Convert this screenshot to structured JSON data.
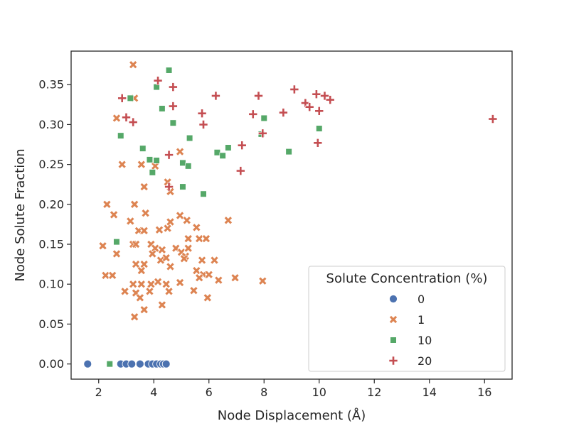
{
  "chart_data": {
    "type": "scatter",
    "xlabel": "Node Displacement (Å)",
    "ylabel": "Node Solute Fraction",
    "xlim": [
      1.0,
      17.0
    ],
    "ylim": [
      -0.019,
      0.392
    ],
    "xticks": [
      "2",
      "4",
      "6",
      "8",
      "10",
      "12",
      "14",
      "16"
    ],
    "yticks": [
      "0.00",
      "0.05",
      "0.10",
      "0.15",
      "0.20",
      "0.25",
      "0.30",
      "0.35"
    ],
    "grid": false,
    "legend": {
      "title": "Solute Concentration (%)",
      "position": "lower-right"
    },
    "series": [
      {
        "name": "0",
        "marker": "circle",
        "color": "#4c72b0",
        "points": [
          [
            1.6,
            0.0
          ],
          [
            2.8,
            0.0
          ],
          [
            3.0,
            0.0
          ],
          [
            3.2,
            0.0
          ],
          [
            3.5,
            0.0
          ],
          [
            3.8,
            0.0
          ],
          [
            3.95,
            0.0
          ],
          [
            4.1,
            0.0
          ],
          [
            4.25,
            0.0
          ],
          [
            4.35,
            0.0
          ],
          [
            4.45,
            0.0
          ]
        ]
      },
      {
        "name": "1",
        "marker": "x",
        "color": "#dd8452",
        "points": [
          [
            3.25,
            0.375
          ],
          [
            2.65,
            0.308
          ],
          [
            3.3,
            0.333
          ],
          [
            2.85,
            0.25
          ],
          [
            3.55,
            0.25
          ],
          [
            4.05,
            0.248
          ],
          [
            4.6,
            0.216
          ],
          [
            4.5,
            0.228
          ],
          [
            3.65,
            0.222
          ],
          [
            4.95,
            0.266
          ],
          [
            2.3,
            0.2
          ],
          [
            3.3,
            0.2
          ],
          [
            2.55,
            0.187
          ],
          [
            3.7,
            0.189
          ],
          [
            3.15,
            0.179
          ],
          [
            4.95,
            0.186
          ],
          [
            4.6,
            0.178
          ],
          [
            5.2,
            0.18
          ],
          [
            6.7,
            0.18
          ],
          [
            4.5,
            0.17
          ],
          [
            3.45,
            0.167
          ],
          [
            3.65,
            0.167
          ],
          [
            4.2,
            0.168
          ],
          [
            5.55,
            0.171
          ],
          [
            5.25,
            0.157
          ],
          [
            5.65,
            0.157
          ],
          [
            5.9,
            0.157
          ],
          [
            2.15,
            0.148
          ],
          [
            2.65,
            0.138
          ],
          [
            3.25,
            0.15
          ],
          [
            3.35,
            0.15
          ],
          [
            3.9,
            0.15
          ],
          [
            4.05,
            0.145
          ],
          [
            3.95,
            0.138
          ],
          [
            4.3,
            0.143
          ],
          [
            4.8,
            0.145
          ],
          [
            5.0,
            0.14
          ],
          [
            5.25,
            0.145
          ],
          [
            5.15,
            0.135
          ],
          [
            4.25,
            0.13
          ],
          [
            4.45,
            0.133
          ],
          [
            4.6,
            0.122
          ],
          [
            3.35,
            0.125
          ],
          [
            3.65,
            0.125
          ],
          [
            3.55,
            0.117
          ],
          [
            5.1,
            0.132
          ],
          [
            5.75,
            0.13
          ],
          [
            6.2,
            0.13
          ],
          [
            5.55,
            0.117
          ],
          [
            5.8,
            0.112
          ],
          [
            6.0,
            0.112
          ],
          [
            2.25,
            0.111
          ],
          [
            2.5,
            0.111
          ],
          [
            3.25,
            0.1
          ],
          [
            3.55,
            0.1
          ],
          [
            3.9,
            0.1
          ],
          [
            4.15,
            0.103
          ],
          [
            4.45,
            0.1
          ],
          [
            4.95,
            0.102
          ],
          [
            5.65,
            0.108
          ],
          [
            6.95,
            0.108
          ],
          [
            6.35,
            0.105
          ],
          [
            7.95,
            0.104
          ],
          [
            2.95,
            0.091
          ],
          [
            3.35,
            0.089
          ],
          [
            3.5,
            0.083
          ],
          [
            3.85,
            0.091
          ],
          [
            4.55,
            0.091
          ],
          [
            5.45,
            0.092
          ],
          [
            5.95,
            0.083
          ],
          [
            4.3,
            0.074
          ],
          [
            3.65,
            0.068
          ],
          [
            3.3,
            0.059
          ]
        ]
      },
      {
        "name": "10",
        "marker": "square",
        "color": "#55a868",
        "points": [
          [
            4.55,
            0.368
          ],
          [
            4.1,
            0.347
          ],
          [
            3.15,
            0.333
          ],
          [
            4.3,
            0.32
          ],
          [
            4.7,
            0.302
          ],
          [
            2.8,
            0.286
          ],
          [
            5.3,
            0.283
          ],
          [
            3.6,
            0.27
          ],
          [
            6.3,
            0.265
          ],
          [
            6.5,
            0.261
          ],
          [
            6.7,
            0.271
          ],
          [
            3.85,
            0.256
          ],
          [
            4.1,
            0.255
          ],
          [
            5.05,
            0.252
          ],
          [
            5.25,
            0.248
          ],
          [
            3.95,
            0.24
          ],
          [
            5.05,
            0.222
          ],
          [
            5.8,
            0.213
          ],
          [
            8.0,
            0.308
          ],
          [
            7.9,
            0.288
          ],
          [
            8.9,
            0.266
          ],
          [
            10.0,
            0.295
          ],
          [
            2.65,
            0.153
          ],
          [
            2.4,
            0.0
          ]
        ]
      },
      {
        "name": "20",
        "marker": "plus",
        "color": "#c44e52",
        "points": [
          [
            4.15,
            0.355
          ],
          [
            4.7,
            0.347
          ],
          [
            6.25,
            0.336
          ],
          [
            2.85,
            0.333
          ],
          [
            3.25,
            0.303
          ],
          [
            3.0,
            0.309
          ],
          [
            4.7,
            0.323
          ],
          [
            5.75,
            0.314
          ],
          [
            5.8,
            0.3
          ],
          [
            7.6,
            0.313
          ],
          [
            7.8,
            0.336
          ],
          [
            8.7,
            0.315
          ],
          [
            9.1,
            0.344
          ],
          [
            9.5,
            0.327
          ],
          [
            9.65,
            0.322
          ],
          [
            9.9,
            0.338
          ],
          [
            10.0,
            0.317
          ],
          [
            10.2,
            0.336
          ],
          [
            10.4,
            0.331
          ],
          [
            7.95,
            0.289
          ],
          [
            7.2,
            0.274
          ],
          [
            9.95,
            0.277
          ],
          [
            4.55,
            0.262
          ],
          [
            7.15,
            0.242
          ],
          [
            4.55,
            0.222
          ],
          [
            16.3,
            0.307
          ]
        ]
      }
    ]
  }
}
